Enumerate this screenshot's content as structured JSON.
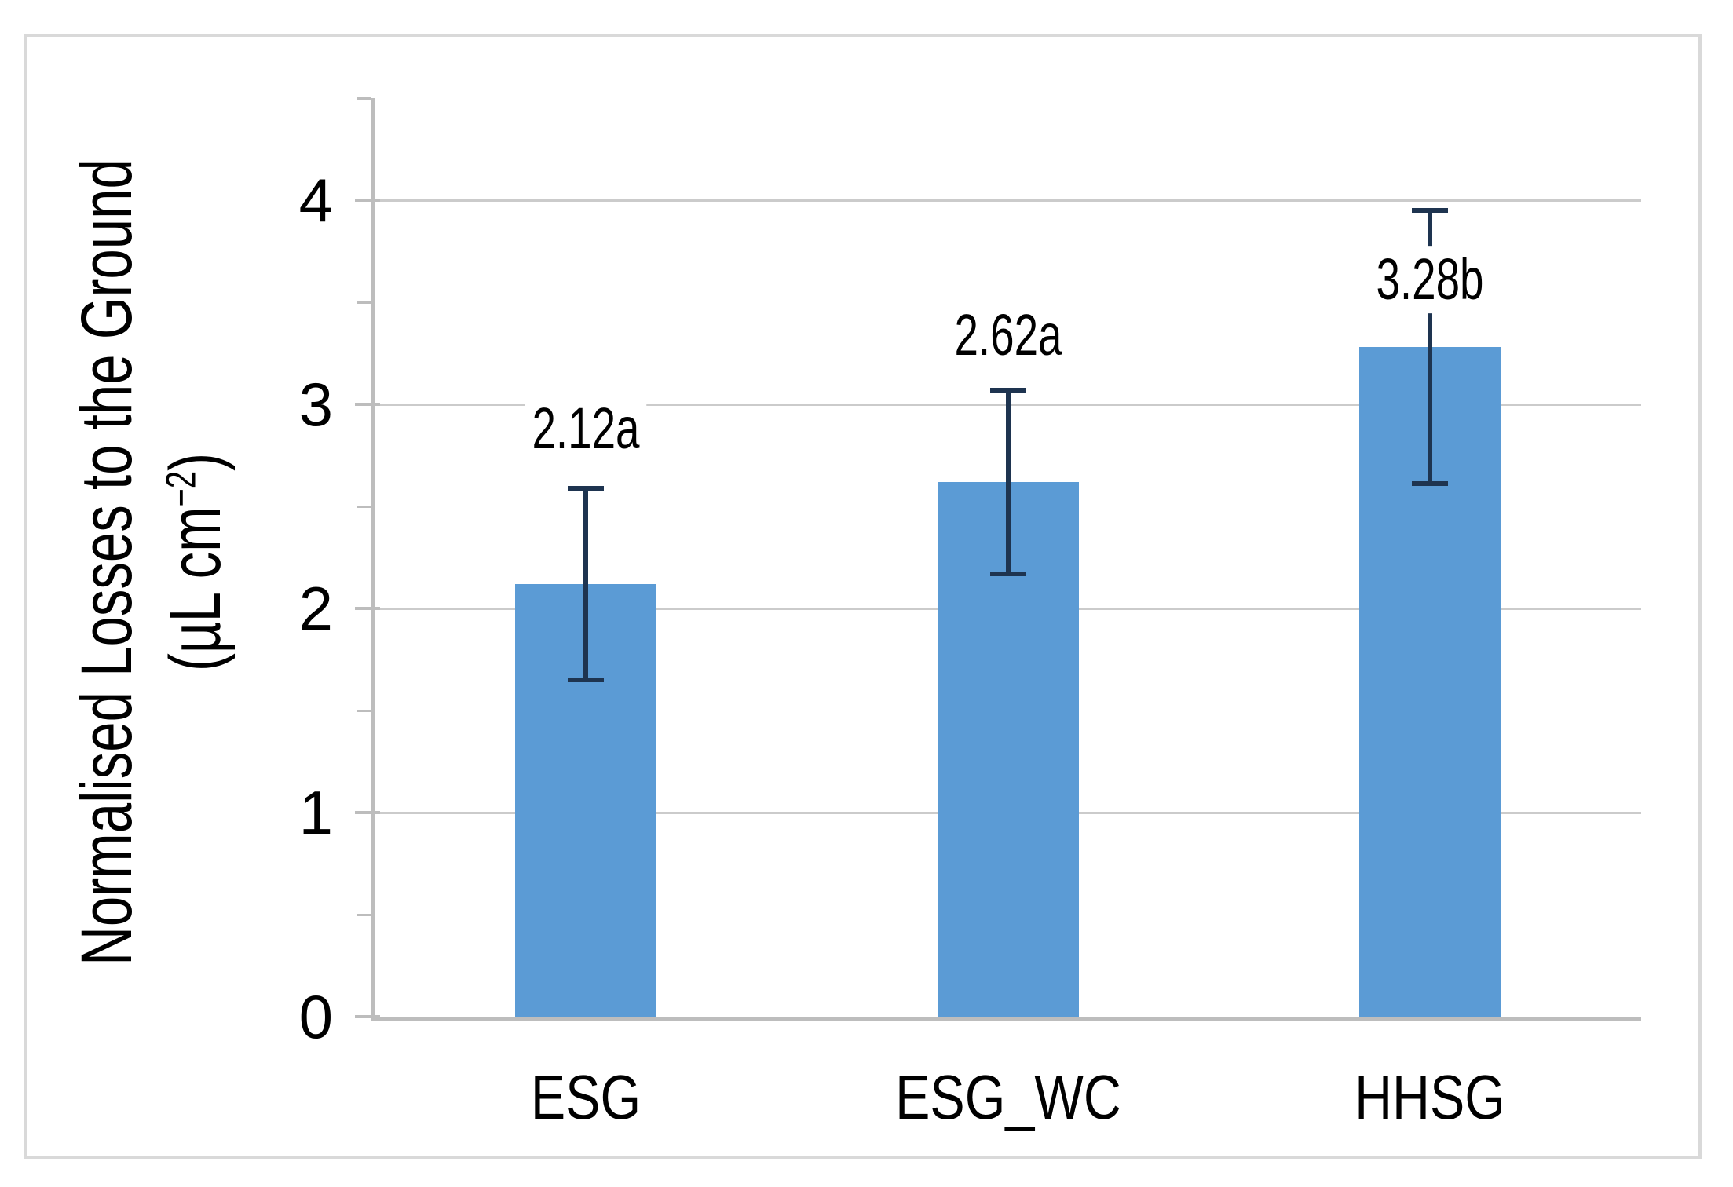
{
  "figure": {
    "y_axis_title_line1": "Normalised Losses to the Ground",
    "y_axis_title_line2_prefix": "(µL cm",
    "y_axis_title_line2_sup": "−2",
    "y_axis_title_line2_suffix": ")"
  },
  "chart_data": {
    "type": "bar",
    "title": "",
    "xlabel": "",
    "ylabel": "Normalised Losses to the Ground (µL cm−2)",
    "categories": [
      "ESG",
      "ESG_WC",
      "HHSG"
    ],
    "values": [
      2.12,
      2.62,
      3.28
    ],
    "data_labels": [
      "2.12a",
      "2.62a",
      "3.28b"
    ],
    "error_bars_plus_minus": [
      0.47,
      0.45,
      0.67
    ],
    "data_label_center_y_values": [
      2.88,
      3.34,
      3.61
    ],
    "ylim": [
      0,
      4.5
    ],
    "yticks": [
      0,
      1,
      2,
      3,
      4
    ],
    "ytick_labels": [
      "0",
      "1",
      "2",
      "3",
      "4"
    ],
    "minor_tick_step": 0.5,
    "grid": true,
    "legend": false,
    "series_name": "Normalised losses",
    "colors": {
      "bar": "#5b9bd5",
      "error_bar": "#1e3450",
      "gridline": "#cbcbcb",
      "axis": "#bdbdbd",
      "text": "#000000",
      "figure_border": "#d9d9d9",
      "background": "#ffffff"
    }
  }
}
